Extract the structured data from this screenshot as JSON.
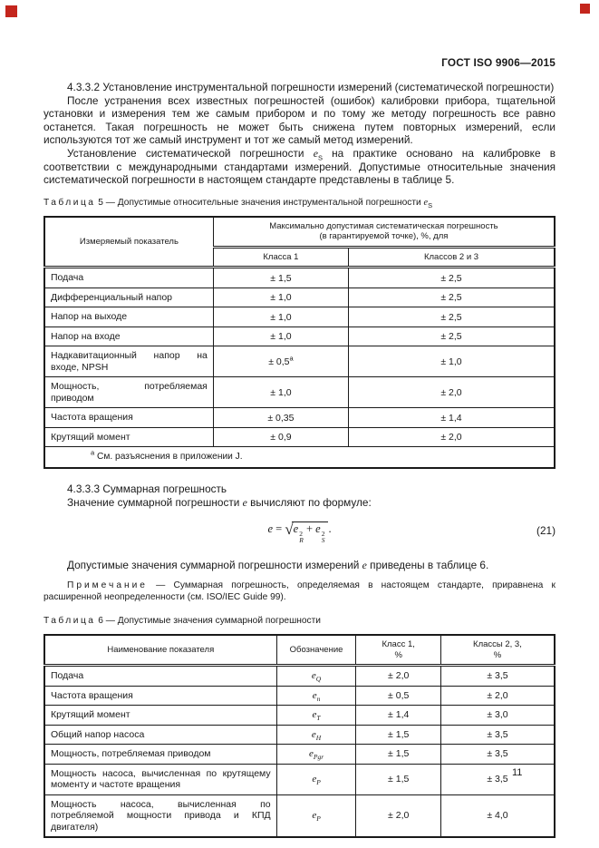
{
  "page": {
    "header": "ГОСТ ISO 9906—2015",
    "number": "11"
  },
  "artifacts": {
    "corner_mark_color": "#c4261d",
    "corner_mark_style": "background:#c4261d"
  },
  "section_4332": {
    "heading": "4.3.3.2 Установление инструментальной погрешности измерений (систематической погрешности)",
    "para1": "После устранения всех известных погрешностей (ошибок) калибровки прибора, тщательной установки и измерения тем же самым прибором и по тому же методу погрешность все равно останется. Такая погрешность не может быть снижена путем повторных измерений, если используются тот же самый инструмент и тот же самый метод измерений.",
    "para2_part1": "Установление систематической погрешности ",
    "para2_sym_base": "e",
    "para2_sym_sub": "S",
    "para2_part2": " на практике основано на калибровке в соответствии с международными стандартами измерений. Допустимые относительные значения систематической погрешности в настоящем стандарте представлены в таблице 5."
  },
  "table5": {
    "caption_word": "Таблица",
    "caption_rest": " 5 — Допустимые относительные значения инструментальной погрешности ",
    "caption_sym_base": "e",
    "caption_sym_sub": "S",
    "col1_header": "Измеряемый показатель",
    "span_header": "Максимально допустимая систематическая погрешность\n(в гарантируемой точке), %, для",
    "sub_headers": [
      "Класса 1",
      "Классов 2 и 3"
    ],
    "rows": [
      {
        "name": "Подача",
        "class1": "± 1,5",
        "class1_sup": "",
        "class23": "± 2,5"
      },
      {
        "name": "Дифференциальный напор",
        "class1": "± 1,0",
        "class1_sup": "",
        "class23": "± 2,5"
      },
      {
        "name": "Напор на выходе",
        "class1": "± 1,0",
        "class1_sup": "",
        "class23": "± 2,5"
      },
      {
        "name": "Напор на входе",
        "class1": "± 1,0",
        "class1_sup": "",
        "class23": "± 2,5"
      },
      {
        "name": "Надкавитационный напор на входе, NPSH",
        "class1": "± 0,5",
        "class1_sup": "a",
        "class23": "± 1,0"
      },
      {
        "name": "Мощность, потребляемая приводом",
        "class1": "± 1,0",
        "class1_sup": "",
        "class23": "± 2,0"
      },
      {
        "name": "Частота вращения",
        "class1": "± 0,35",
        "class1_sup": "",
        "class23": "± 1,4"
      },
      {
        "name": "Крутящий момент",
        "class1": "± 0,9",
        "class1_sup": "",
        "class23": "± 2,0"
      }
    ],
    "footnote_sup": "a",
    "footnote_text": " См. разъяснения в приложении J."
  },
  "section_4333": {
    "heading": "4.3.3.3 Суммарная погрешность",
    "intro_part1": "Значение суммарной погрешности ",
    "intro_sym": "e",
    "intro_part2": " вычисляют по формуле:",
    "formula": {
      "lhs": "e",
      "eq": " = ",
      "sqrt": "√",
      "t1_base": "e",
      "t1_sup": "2",
      "t1_sub": "R",
      "plus": " + ",
      "t2_base": "e",
      "t2_sup": "2",
      "t2_sub": "S",
      "trailer": ".",
      "number": "(21)"
    },
    "after_part1": "Допустимые значения суммарной погрешности измерений ",
    "after_sym": "e",
    "after_part2": " приведены в таблице 6.",
    "note_word": "Примечание",
    "note_dash": " — ",
    "note_text": "Суммарная погрешность, определяемая в настоящем стандарте, приравнена к расширенной неопределенности (см. ISO/IEC Guide 99)."
  },
  "table6": {
    "caption_word": "Таблица",
    "caption_rest": " 6 — Допустимые значения суммарной погрешности",
    "headers": {
      "name": "Наименование показателя",
      "symbol": "Обозначение",
      "class1": "Класс 1,\n%",
      "class23": "Классы 2, 3,\n%"
    },
    "symbol_base": "e",
    "rows": [
      {
        "name": "Подача",
        "sym_sub": "Q",
        "class1": "± 2,0",
        "class23": "± 3,5"
      },
      {
        "name": "Частота вращения",
        "sym_sub": "n",
        "class1": "± 0,5",
        "class23": "± 2,0"
      },
      {
        "name": "Крутящий момент",
        "sym_sub": "T",
        "class1": "± 1,4",
        "class23": "± 3,0"
      },
      {
        "name": "Общий напор насоса",
        "sym_sub": "H",
        "class1": "± 1,5",
        "class23": "± 3,5"
      },
      {
        "name": "Мощность, потребляемая приводом",
        "sym_sub": "Pgr",
        "class1": "± 1,5",
        "class23": "± 3,5"
      },
      {
        "name": "Мощность насоса, вычисленная по крутящему моменту и частоте вращения",
        "sym_sub": "P",
        "class1": "± 1,5",
        "class23": "± 3,5"
      },
      {
        "name": "Мощность насоса, вычисленная по потребляемой мощности привода и КПД двигателя)",
        "sym_sub": "P",
        "class1": "± 2,0",
        "class23": "± 4,0"
      }
    ]
  }
}
